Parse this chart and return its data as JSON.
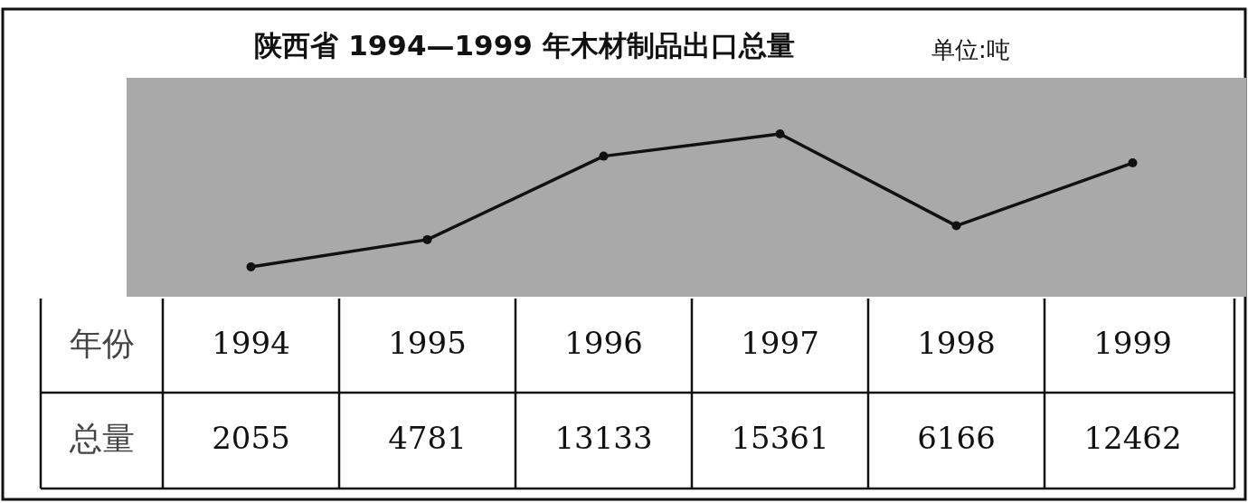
{
  "chart_data": {
    "type": "line",
    "title": "陕西省 1994—1999 年木材制品出口总量",
    "subtitle": "单位:吨",
    "categories": [
      "1994",
      "1995",
      "1996",
      "1997",
      "1998",
      "1999"
    ],
    "series": [
      {
        "color": "#111111",
        "values": [
          2055,
          4781,
          13133,
          15361,
          6166,
          12462
        ]
      }
    ],
    "data_labels": true,
    "marker": "circle",
    "annotations": [
      "年份",
      "总量"
    ]
  }
}
